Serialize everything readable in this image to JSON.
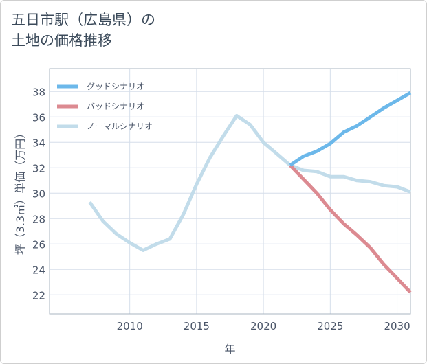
{
  "title": {
    "line1": "五日市駅（広島県）の",
    "line2": "土地の価格推移"
  },
  "colors": {
    "good": "#6cb8ea",
    "bad": "#dc8a91",
    "normal": "#c2dcea",
    "grid": "#d5deea",
    "text": "#4a5568"
  },
  "chart_data": {
    "type": "line",
    "title": "五日市駅（広島県）の土地の価格推移",
    "xlabel": "年",
    "ylabel": "坪（3.3㎡）単価（万円）",
    "xlim": [
      2004,
      2031
    ],
    "ylim": [
      20.5,
      39.8
    ],
    "xticks": [
      2010,
      2015,
      2020,
      2025,
      2030
    ],
    "yticks": [
      22,
      24,
      26,
      28,
      30,
      32,
      34,
      36,
      38
    ],
    "legend_position": "top-left",
    "series": [
      {
        "name": "グッドシナリオ",
        "color": "#6cb8ea",
        "x": [
          2022,
          2023,
          2024,
          2025,
          2026,
          2027,
          2028,
          2029,
          2030,
          2031
        ],
        "y": [
          32.2,
          32.9,
          33.3,
          33.9,
          34.8,
          35.3,
          36.0,
          36.7,
          37.3,
          37.9
        ]
      },
      {
        "name": "バッドシナリオ",
        "color": "#dc8a91",
        "x": [
          2022,
          2023,
          2024,
          2025,
          2026,
          2027,
          2028,
          2029,
          2030,
          2031
        ],
        "y": [
          32.2,
          31.1,
          30.0,
          28.7,
          27.6,
          26.7,
          25.7,
          24.4,
          23.3,
          22.2
        ]
      },
      {
        "name": "ノーマルシナリオ",
        "color": "#c2dcea",
        "x": [
          2007,
          2008,
          2009,
          2010,
          2011,
          2012,
          2013,
          2014,
          2015,
          2016,
          2017,
          2018,
          2019,
          2020,
          2021,
          2022,
          2023,
          2024,
          2025,
          2026,
          2027,
          2028,
          2029,
          2030,
          2031
        ],
        "y": [
          29.3,
          27.8,
          26.8,
          26.1,
          25.5,
          26.0,
          26.4,
          28.3,
          30.7,
          32.8,
          34.5,
          36.1,
          35.4,
          34.0,
          33.1,
          32.2,
          31.8,
          31.7,
          31.3,
          31.3,
          31.0,
          30.9,
          30.6,
          30.5,
          30.1
        ]
      }
    ]
  }
}
